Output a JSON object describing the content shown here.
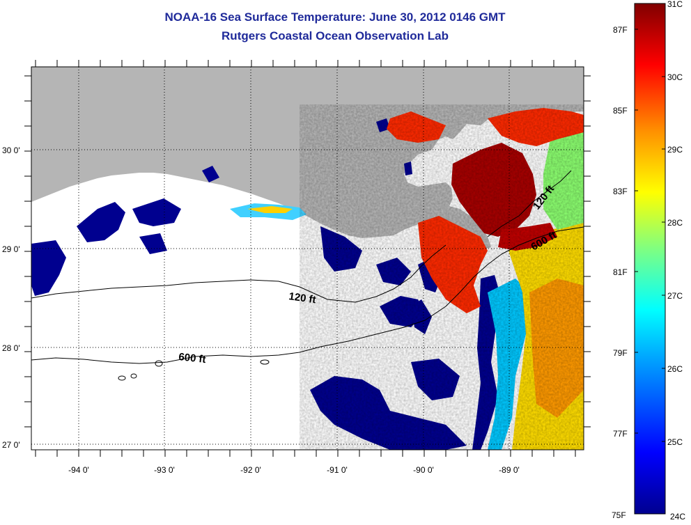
{
  "header": {
    "title": "NOAA-16 Sea Surface Temperature:  June 30, 2012 0146 GMT",
    "subtitle": "Rutgers Coastal Ocean Observation Lab"
  },
  "map": {
    "lon_ticks": [
      "-94 0'",
      "-93 0'",
      "-92 0'",
      "-91 0'",
      "-90 0'",
      "-89 0'"
    ],
    "lat_ticks": [
      "30 0'",
      "29 0'",
      "28 0'",
      "27 0'"
    ],
    "contours": [
      {
        "label": "120 ft"
      },
      {
        "label": "600 ft"
      },
      {
        "label": "120 ft"
      },
      {
        "label": "600 ft"
      }
    ]
  },
  "colorbar": {
    "celsius_labels": [
      "31C",
      "30C",
      "29C",
      "28C",
      "27C",
      "26C",
      "25C",
      "24C"
    ],
    "fahrenheit_labels": [
      "87F",
      "85F",
      "83F",
      "81F",
      "79F",
      "77F",
      "75F"
    ],
    "colors": [
      "#00008f",
      "#0000ff",
      "#00a0ff",
      "#00ffff",
      "#80ff80",
      "#ffff00",
      "#ff9000",
      "#ff0000",
      "#800000"
    ]
  },
  "colors": {
    "land": "#b5b5b5",
    "ocean_no_data": "#ffffff",
    "title": "#1f2a9a"
  }
}
